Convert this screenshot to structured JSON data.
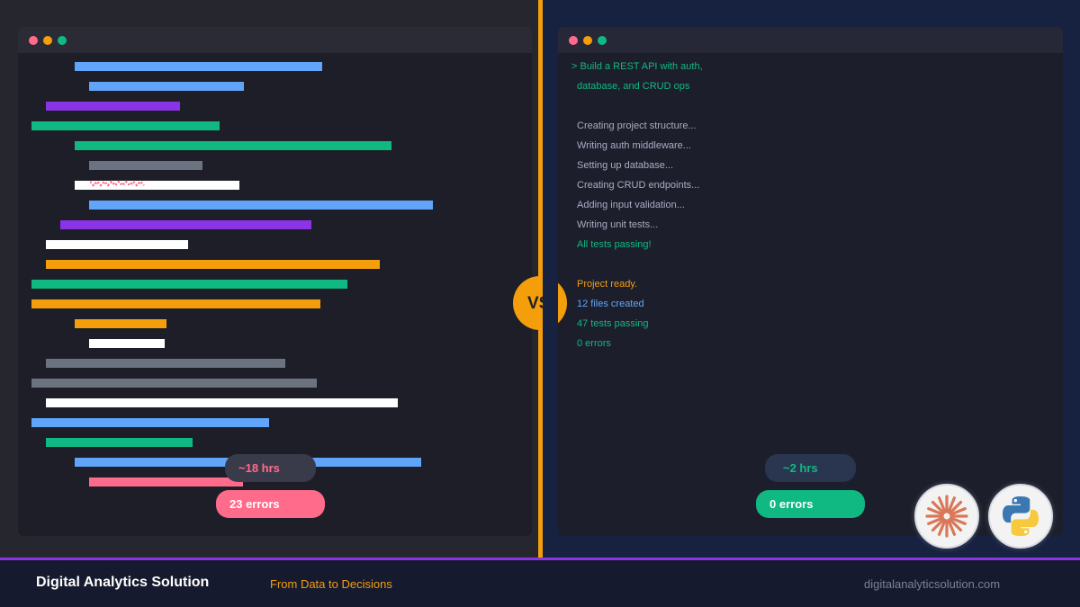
{
  "colors": {
    "blue": "#60a5fa",
    "purple": "#8b33e6",
    "green": "#10b981",
    "gray": "#6b7280",
    "white": "#ffffff",
    "orange": "#f59e0b",
    "pink": "#ff6b8a"
  },
  "left": {
    "code_lines": [
      "blue",
      "blue",
      "purple",
      "green",
      "green",
      "gray",
      "white",
      "blue",
      "purple",
      "white",
      "orange",
      "green",
      "orange",
      "orange",
      "white",
      "gray",
      "gray",
      "white",
      "blue",
      "green",
      "blue",
      "pink"
    ],
    "hours_label": "~18 hrs",
    "errors_label": "23 errors"
  },
  "vs_label": "VS",
  "right": {
    "prompt": [
      "> Build a REST API with auth,",
      "database, and CRUD ops"
    ],
    "steps": [
      "Creating project structure...",
      "Writing auth middleware...",
      "Setting up database...",
      "Creating CRUD endpoints...",
      "Adding input validation...",
      "Writing unit tests..."
    ],
    "all_passing": "All tests passing!",
    "ready": "Project ready.",
    "files_created": "12 files created",
    "tests_passing": "47 tests passing",
    "errors_summary": "0 errors",
    "hours_label": "~2 hrs",
    "errors_label": "0 errors"
  },
  "icons": {
    "left_logo": "claude-starburst-icon",
    "right_logo": "python-icon"
  },
  "footer": {
    "brand": "Digital Analytics Solution",
    "tagline": "From Data to Decisions",
    "url": "digitalanalyticsolution.com"
  }
}
